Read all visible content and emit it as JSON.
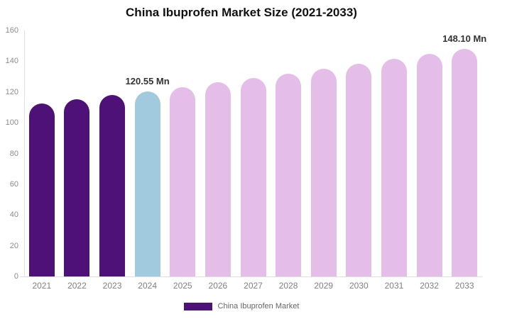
{
  "chart_data": {
    "type": "bar",
    "title": "China Ibuprofen Market Size (2021-2033)",
    "categories": [
      "2021",
      "2022",
      "2023",
      "2024",
      "2025",
      "2026",
      "2027",
      "2028",
      "2029",
      "2030",
      "2031",
      "2032",
      "2033"
    ],
    "values": [
      112.55,
      115.16,
      117.82,
      120.55,
      123.34,
      126.19,
      129.11,
      132.1,
      135.16,
      138.29,
      141.49,
      144.76,
      148.1
    ],
    "unit": "Mn",
    "xlabel": "",
    "ylabel": "",
    "ylim": [
      0,
      160
    ],
    "yticks": [
      0,
      20,
      40,
      60,
      80,
      100,
      120,
      140,
      160
    ],
    "grid": false,
    "legend_position": "bottom",
    "bar_colors": {
      "past": "#4D1178",
      "current": "#A2CADF",
      "forecast": "#E4BDE8"
    },
    "bar_roles": [
      "past",
      "past",
      "past",
      "current",
      "forecast",
      "forecast",
      "forecast",
      "forecast",
      "forecast",
      "forecast",
      "forecast",
      "forecast",
      "forecast"
    ],
    "annotations": [
      {
        "category": "2024",
        "index": 3,
        "text": "120.55 Mn"
      },
      {
        "category": "2033",
        "index": 12,
        "text": "148.10 Mn"
      }
    ]
  },
  "legend": {
    "label": "China Ibuprofen Market",
    "swatch_color": "#4D1178"
  },
  "colors": {
    "background": "#ffffff",
    "title_text": "#111111",
    "axis_label": "#808080",
    "data_label": "#333333",
    "axis_line": "#e0e0e0"
  }
}
